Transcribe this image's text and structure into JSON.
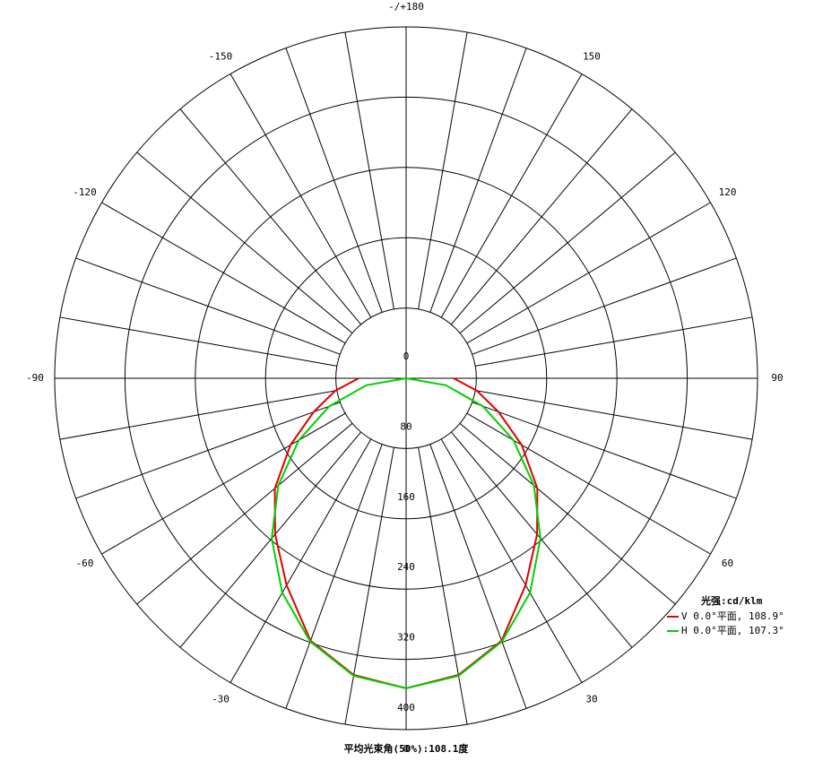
{
  "chart_data": {
    "type": "polar",
    "title": "平均光束角(50%):108.1度",
    "legend_title": "光强:cd/klm",
    "angles": [
      -90,
      -80,
      -70,
      -60,
      -50,
      -40,
      -30,
      -20,
      -10,
      0,
      10,
      20,
      30,
      40,
      50,
      60,
      70,
      80,
      90
    ],
    "series": [
      {
        "name": "V 0.0°平面, 108.9°",
        "color": "#e00000",
        "values": [
          54,
          82,
          112,
          152,
          195,
          232,
          272,
          318,
          343,
          353,
          343,
          318,
          272,
          232,
          195,
          152,
          112,
          82,
          54
        ]
      },
      {
        "name": "H 0.0°平面, 107.3°",
        "color": "#00d000",
        "values": [
          0,
          46,
          93,
          141,
          190,
          238,
          282,
          319,
          344,
          353,
          344,
          319,
          282,
          238,
          190,
          141,
          93,
          46,
          0
        ]
      }
    ],
    "rlim": [
      0,
      400
    ],
    "rticks": [
      0,
      80,
      160,
      240,
      320,
      400
    ],
    "angle_ticks": [
      0,
      30,
      60,
      90,
      120,
      150,
      {
        "value": 180,
        "label": "-/+180"
      },
      -150,
      -120,
      -90,
      -60,
      -30
    ]
  }
}
